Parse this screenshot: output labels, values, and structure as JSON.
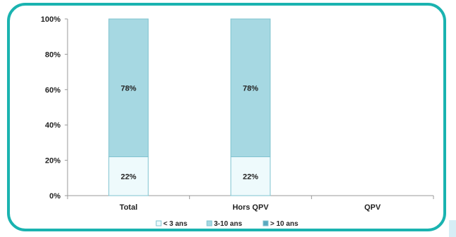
{
  "chart_data": {
    "type": "bar",
    "stacked": true,
    "categories": [
      "Total",
      "Hors QPV",
      "QPV"
    ],
    "series": [
      {
        "name": "< 3 ans",
        "values": [
          22,
          22,
          0
        ],
        "labels": [
          "22%",
          "22%",
          ""
        ],
        "color": "#eefafc"
      },
      {
        "name": "3-10 ans",
        "values": [
          78,
          78,
          0
        ],
        "labels": [
          "78%",
          "78%",
          ""
        ],
        "color": "#a6d8e2"
      },
      {
        "name": "> 10 ans",
        "values": [
          0,
          0,
          0
        ],
        "labels": [
          "",
          "",
          ""
        ],
        "color": "#5aa9bf"
      }
    ],
    "y_ticks": [
      "0%",
      "20%",
      "40%",
      "60%",
      "80%",
      "100%"
    ],
    "ylim": [
      0,
      100
    ],
    "legend_position": "bottom",
    "grid": false
  },
  "colors": {
    "frame": "#1ab3b0",
    "bar_border": "#7fc3cf",
    "axis": "#9a9a9a"
  }
}
